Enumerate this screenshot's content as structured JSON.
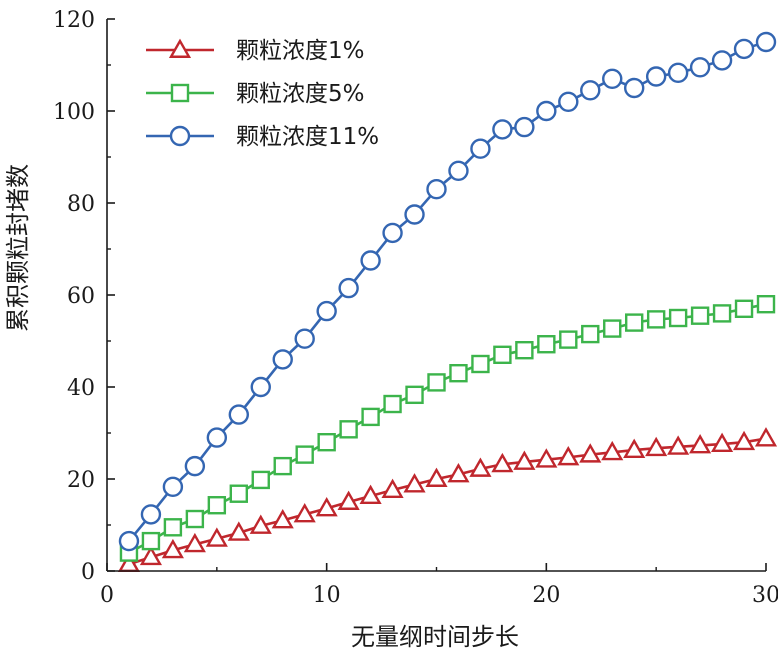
{
  "chart_data": {
    "type": "line",
    "title": "",
    "xlabel": "无量纲时间步长",
    "ylabel": "累积颗粒封堵数",
    "xlim": [
      0,
      30
    ],
    "ylim": [
      0,
      120
    ],
    "xticks": [
      0,
      10,
      20,
      30
    ],
    "yticks": [
      0,
      20,
      40,
      60,
      80,
      100,
      120
    ],
    "xtick_labels": [
      "0",
      "10",
      "20",
      "30"
    ],
    "ytick_labels": [
      "0",
      "20",
      "40",
      "60",
      "80",
      "100",
      "120"
    ],
    "grid": false,
    "legend_position": "top-left",
    "x": [
      1,
      2,
      3,
      4,
      5,
      6,
      7,
      8,
      9,
      10,
      11,
      12,
      13,
      14,
      15,
      16,
      17,
      18,
      19,
      20,
      21,
      22,
      23,
      24,
      25,
      26,
      27,
      28,
      29,
      30
    ],
    "series": [
      {
        "name": "颗粒浓度1%",
        "marker": "triangle",
        "color": "#c0272d",
        "values": [
          1.5,
          3,
          4.5,
          5.8,
          7,
          8.3,
          9.8,
          11,
          12.3,
          13.6,
          15,
          16.3,
          17.6,
          18.8,
          20,
          21,
          22.2,
          23.2,
          23.7,
          24.2,
          24.7,
          25.3,
          25.8,
          26.3,
          26.7,
          27,
          27.3,
          27.6,
          28,
          28.8
        ]
      },
      {
        "name": "颗粒浓度5%",
        "marker": "square",
        "color": "#3cb44b",
        "values": [
          4,
          6.5,
          9.5,
          11.3,
          14.3,
          16.8,
          19.8,
          22.8,
          25.3,
          28,
          30.8,
          33.5,
          36.3,
          38.3,
          41,
          43,
          45,
          47,
          48,
          49.3,
          50.3,
          51.5,
          52.7,
          54,
          54.7,
          55,
          55.5,
          56,
          57,
          58
        ]
      },
      {
        "name": "颗粒浓度11%",
        "marker": "circle",
        "color": "#3466b2",
        "values": [
          6.5,
          12.3,
          18.3,
          22.8,
          29,
          34,
          40,
          46,
          50.5,
          56.5,
          61.5,
          67.5,
          73.5,
          77.5,
          83,
          87,
          91.8,
          96,
          96.5,
          100,
          102,
          104.5,
          107,
          105,
          107.5,
          108.3,
          109.5,
          111,
          113.5,
          115
        ]
      }
    ]
  }
}
